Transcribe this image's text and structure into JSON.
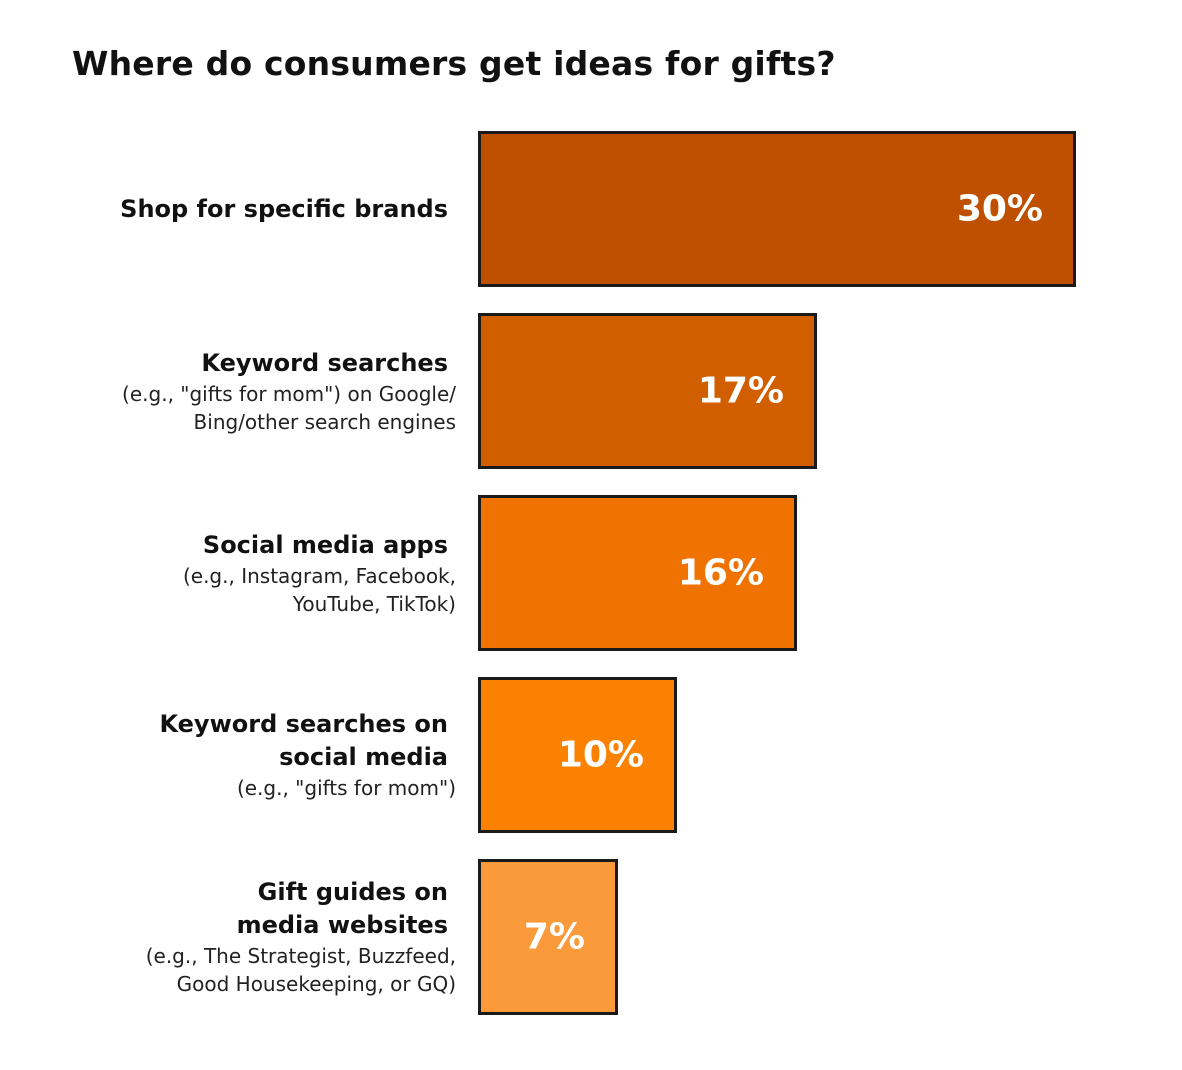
{
  "chart_data": {
    "type": "bar",
    "orientation": "horizontal",
    "title": "Where do consumers get ideas for gifts?",
    "xlabel": "",
    "ylabel": "",
    "xlim": [
      0,
      30
    ],
    "grid": false,
    "legend": "none",
    "categories": [
      {
        "main": "Shop for specific brands",
        "sub": ""
      },
      {
        "main": "Keyword searches",
        "sub": "(e.g., \"gifts for mom\") on Google/\nBing/other search engines"
      },
      {
        "main": "Social media apps",
        "sub": "(e.g., Instagram, Facebook,\nYouTube, TikTok)"
      },
      {
        "main": "Keyword searches on\nsocial media",
        "sub": "(e.g., \"gifts for mom\")"
      },
      {
        "main": "Gift guides on\nmedia websites",
        "sub": "(e.g., The Strategist, Buzzfeed,\nGood Housekeeping, or GQ)"
      }
    ],
    "values": [
      30,
      17,
      16,
      10,
      7
    ],
    "value_labels": [
      "30%",
      "17%",
      "16%",
      "10%",
      "7%"
    ],
    "colors": [
      "#bf5000",
      "#d15f00",
      "#f07200",
      "#fb8100",
      "#fb9a3a"
    ]
  }
}
